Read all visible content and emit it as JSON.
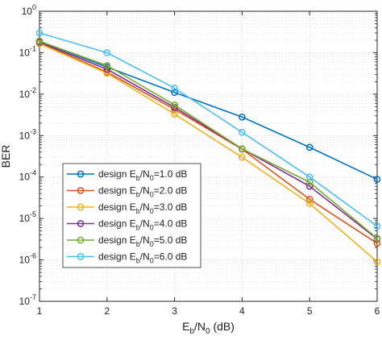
{
  "chart_data": {
    "type": "line",
    "title": "",
    "xlabel": {
      "main": "E",
      "sub": "b",
      "mid": "/N",
      "sub2": "0",
      "tail": " (dB)"
    },
    "ylabel": "BER",
    "xlim": [
      1,
      6
    ],
    "ylim": [
      1e-07,
      1
    ],
    "y_scale": "log",
    "grid": true,
    "minor_grid": true,
    "legend_position": "lower-left",
    "x": [
      1,
      2,
      3,
      4,
      5,
      6
    ],
    "x_ticks": [
      "1",
      "2",
      "3",
      "4",
      "5",
      "6"
    ],
    "y_ticks": [
      {
        "value": 1e-07,
        "base": "10",
        "exp": "-7"
      },
      {
        "value": 1e-06,
        "base": "10",
        "exp": "-6"
      },
      {
        "value": 1e-05,
        "base": "10",
        "exp": "-5"
      },
      {
        "value": 0.0001,
        "base": "10",
        "exp": "-4"
      },
      {
        "value": 0.001,
        "base": "10",
        "exp": "-3"
      },
      {
        "value": 0.01,
        "base": "10",
        "exp": "-2"
      },
      {
        "value": 0.1,
        "base": "10",
        "exp": "-1"
      },
      {
        "value": 1,
        "base": "10",
        "exp": "0"
      }
    ],
    "series": [
      {
        "name": "design Eb/N0=1.0 dB",
        "label_parts": [
          "design E",
          "b",
          "/N",
          "0",
          "=1.0 dB"
        ],
        "color": "#0072BD",
        "values": [
          0.19,
          0.045,
          0.011,
          0.0028,
          0.00052,
          8.8e-05
        ]
      },
      {
        "name": "design Eb/N0=2.0 dB",
        "label_parts": [
          "design E",
          "b",
          "/N",
          "0",
          "=2.0 dB"
        ],
        "color": "#D95319",
        "values": [
          0.175,
          0.034,
          0.0043,
          0.00047,
          2.9e-05,
          2.5e-06
        ]
      },
      {
        "name": "design Eb/N0=3.0 dB",
        "label_parts": [
          "design E",
          "b",
          "/N",
          "0",
          "=3.0 dB"
        ],
        "color": "#EDB120",
        "values": [
          0.165,
          0.032,
          0.0033,
          0.0003,
          2.3e-05,
          9e-07
        ]
      },
      {
        "name": "design Eb/N0=4.0 dB",
        "label_parts": [
          "design E",
          "b",
          "/N",
          "0",
          "=4.0 dB"
        ],
        "color": "#7E2F8E",
        "values": [
          0.18,
          0.04,
          0.0048,
          0.00048,
          6e-05,
          3.2e-06
        ]
      },
      {
        "name": "design Eb/N0=5.0 dB",
        "label_parts": [
          "design E",
          "b",
          "/N",
          "0",
          "=5.0 dB"
        ],
        "color": "#77AC30",
        "values": [
          0.19,
          0.049,
          0.0055,
          0.00048,
          7.5e-05,
          3.3e-06
        ]
      },
      {
        "name": "design Eb/N0=6.0 dB",
        "label_parts": [
          "design E",
          "b",
          "/N",
          "0",
          "=6.0 dB"
        ],
        "color": "#4DBEEE",
        "values": [
          0.3,
          0.1,
          0.014,
          0.0012,
          0.0001,
          6.5e-06
        ]
      }
    ]
  }
}
